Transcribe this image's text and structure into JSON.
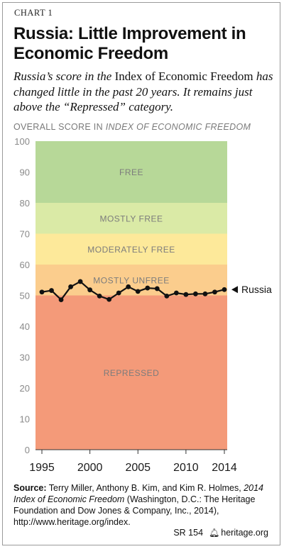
{
  "header": {
    "chart_label": "CHART 1",
    "title": "Russia: Little Improvement in Economic Freedom",
    "subtitle_pre": "Russia’s score in the ",
    "subtitle_index": "Index",
    "subtitle_of": " of Economic Freedom",
    "subtitle_post": " has changed little in the past 20 years. It remains just above the “Repressed” category."
  },
  "axis_caption": {
    "pre": "OVERALL SCORE IN ",
    "italic": "INDEX OF ECONOMIC FREEDOM"
  },
  "chart_data": {
    "type": "line",
    "ylim": [
      0,
      100
    ],
    "xlim": [
      1995,
      2014
    ],
    "y_ticks": [
      "0",
      "10",
      "20",
      "30",
      "40",
      "50",
      "60",
      "70",
      "80",
      "90",
      "100"
    ],
    "x_ticks": [
      "1995",
      "2000",
      "2005",
      "2010",
      "2014"
    ],
    "bands": [
      {
        "label": "FREE",
        "from": 80,
        "to": 100,
        "color": "#b7d898"
      },
      {
        "label": "MOSTLY FREE",
        "from": 70,
        "to": 80,
        "color": "#daeaa6"
      },
      {
        "label": "MODERATELY FREE",
        "from": 60,
        "to": 70,
        "color": "#fde99a"
      },
      {
        "label": "MOSTLY UNFREE",
        "from": 50,
        "to": 60,
        "color": "#fbcd8d"
      },
      {
        "label": "REPRESSED",
        "from": 0,
        "to": 50,
        "color": "#f49a79"
      }
    ],
    "series": [
      {
        "name": "Russia",
        "color": "#111111",
        "x": [
          1995,
          1996,
          1997,
          1998,
          1999,
          2000,
          2001,
          2002,
          2003,
          2004,
          2005,
          2006,
          2007,
          2008,
          2009,
          2010,
          2011,
          2012,
          2013,
          2014
        ],
        "values": [
          51.1,
          51.6,
          48.6,
          52.8,
          54.5,
          51.8,
          49.8,
          48.7,
          50.8,
          52.8,
          51.3,
          52.4,
          52.2,
          49.8,
          50.8,
          50.3,
          50.5,
          50.5,
          51.1,
          51.9
        ]
      }
    ]
  },
  "source": {
    "label": "Source:",
    "text_pre": " Terry Miller, Anthony B. Kim, and Kim R. Holmes, ",
    "text_italic": "2014 Index of Economic Freedom",
    "text_post": " (Washington, D.C.: The Heritage Foundation and Dow Jones & Company, Inc., 2014), http://www.heritage.org/index."
  },
  "footer": {
    "report": "SR 154",
    "site": "heritage.org"
  }
}
